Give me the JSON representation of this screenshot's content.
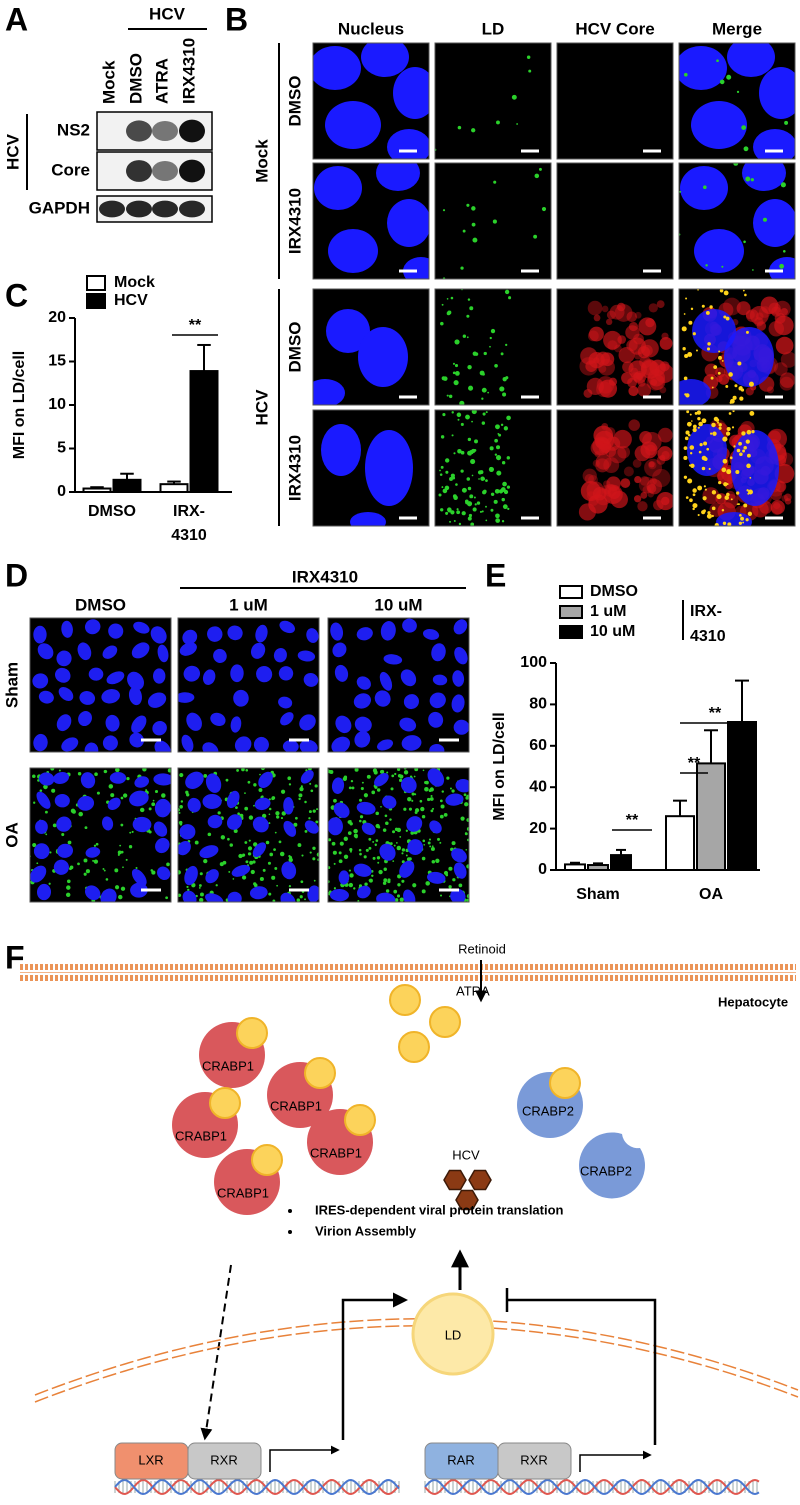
{
  "panel_a": {
    "label": "A",
    "header": "HCV",
    "lanes": [
      "Mock",
      "DMSO",
      "ATRA",
      "IRX4310"
    ],
    "side_label": "HCV",
    "rows": [
      "NS2",
      "Core",
      "GAPDH"
    ]
  },
  "panel_b": {
    "label": "B",
    "columns": [
      "Nucleus",
      "LD",
      "HCV Core",
      "Merge"
    ],
    "groups": [
      {
        "name": "Mock",
        "rows": [
          "DMSO",
          "IRX4310"
        ]
      },
      {
        "name": "HCV",
        "rows": [
          "DMSO",
          "IRX4310"
        ]
      }
    ]
  },
  "chart_data": [
    {
      "panel": "C",
      "type": "bar",
      "ylabel": "MFI on LD/cell",
      "categories": [
        "DMSO",
        "IRX-\n4310"
      ],
      "series": [
        {
          "name": "Mock",
          "color": "#ffffff",
          "values": [
            0.4,
            0.9
          ],
          "errors": [
            0.15,
            0.3
          ]
        },
        {
          "name": "HCV",
          "color": "#000000",
          "values": [
            1.4,
            13.9
          ],
          "errors": [
            0.7,
            3.0
          ]
        }
      ],
      "ylim": [
        0,
        20
      ],
      "yticks": [
        0,
        5,
        10,
        15,
        20
      ],
      "annotations": [
        "**"
      ]
    },
    {
      "panel": "E",
      "type": "bar",
      "ylabel": "MFI on LD/cell",
      "categories": [
        "Sham",
        "OA"
      ],
      "legend_group": "IRX-\n4310",
      "series": [
        {
          "name": "DMSO",
          "color": "#ffffff",
          "values": [
            2.7,
            26
          ],
          "errors": [
            0.8,
            7.5
          ]
        },
        {
          "name": "1 uM",
          "color": "#a6a6a6",
          "values": [
            2.4,
            51.5
          ],
          "errors": [
            0.8,
            16
          ]
        },
        {
          "name": "10 uM",
          "color": "#000000",
          "values": [
            7.2,
            71.5
          ],
          "errors": [
            2.5,
            20
          ]
        }
      ],
      "ylim": [
        0,
        100
      ],
      "yticks": [
        0,
        20,
        40,
        60,
        80,
        100
      ],
      "annotations": [
        "**",
        "**",
        "**"
      ]
    }
  ],
  "panel_d": {
    "label": "D",
    "header": "IRX4310",
    "columns": [
      "DMSO",
      "1 uM",
      "10 uM"
    ],
    "rows": [
      "Sham",
      "OA"
    ]
  },
  "panel_f": {
    "label": "F",
    "retinoid": "Retinoid",
    "cell": "Hepatocyte",
    "atra": "ATRA",
    "crabp1": [
      "CRABP1",
      "CRABP1",
      "CRABP1",
      "CRABP1",
      "CRABP1"
    ],
    "crabp2": [
      "CRABP2",
      "CRABP2"
    ],
    "hcv": "HCV",
    "bullets": [
      "IRES-dependent viral protein translation",
      "Virion Assembly"
    ],
    "ld": "LD",
    "receptors": [
      "LXR",
      "RXR",
      "RAR",
      "RXR"
    ]
  }
}
